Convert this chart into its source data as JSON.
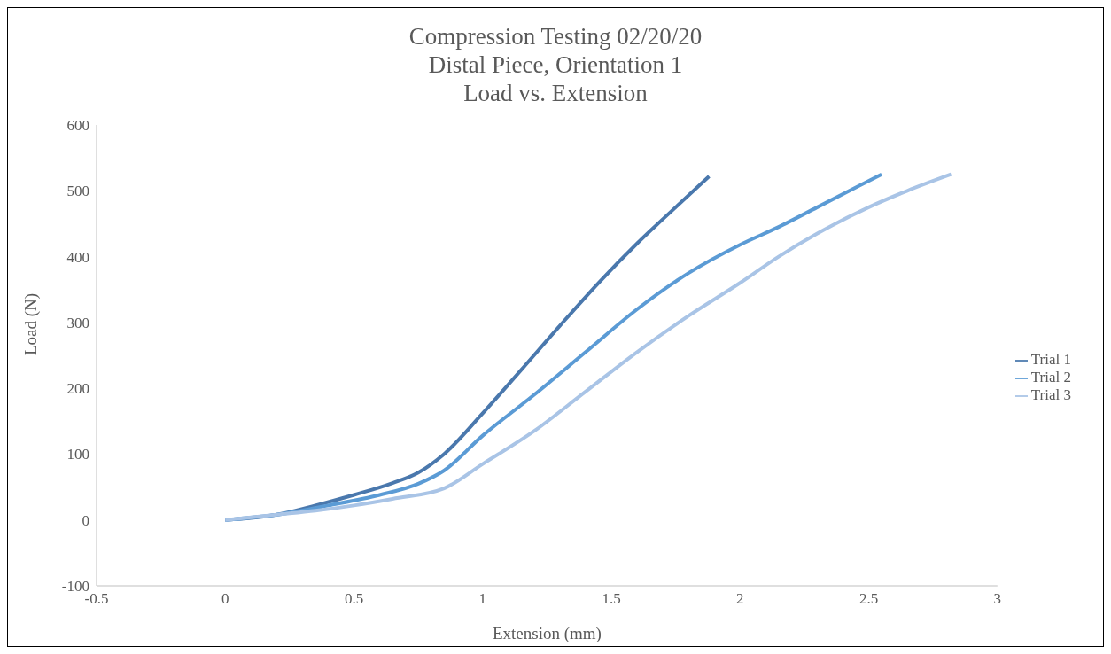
{
  "chart_data": {
    "type": "line",
    "title": "Compression Testing 02/20/20",
    "subtitle": "Distal Piece, Orientation 1\nLoad vs. Extension",
    "xlabel": "Extension (mm)",
    "ylabel": "Load (N)",
    "xlim": [
      -0.5,
      3
    ],
    "xticks": [
      -0.5,
      0,
      0.5,
      1,
      1.5,
      2,
      2.5,
      3
    ],
    "ylim": [
      -100,
      600
    ],
    "yticks": [
      -100,
      0,
      100,
      200,
      300,
      400,
      500,
      600
    ],
    "grid": false,
    "legend": "right",
    "marker": "none",
    "line_style": "solid",
    "series": [
      {
        "name": "Trial 1",
        "color": "#4a78ad",
        "x": [
          0,
          0.2,
          0.35,
          0.5,
          0.65,
          0.75,
          0.85,
          1.0,
          1.15,
          1.3,
          1.45,
          1.6,
          1.75,
          1.88
        ],
        "values": [
          0,
          8,
          22,
          38,
          56,
          72,
          100,
          162,
          228,
          295,
          360,
          420,
          475,
          522
        ]
      },
      {
        "name": "Trial 2",
        "color": "#5b9bd5",
        "x": [
          0,
          0.2,
          0.4,
          0.6,
          0.75,
          0.85,
          1.0,
          1.2,
          1.4,
          1.6,
          1.8,
          2.0,
          2.15,
          2.3,
          2.45,
          2.55
        ],
        "values": [
          0,
          8,
          22,
          38,
          55,
          75,
          128,
          190,
          255,
          320,
          375,
          418,
          445,
          475,
          505,
          525
        ]
      },
      {
        "name": "Trial 3",
        "color": "#a9c4e6",
        "x": [
          0,
          0.2,
          0.35,
          0.5,
          0.65,
          0.85,
          1.0,
          1.2,
          1.4,
          1.6,
          1.8,
          2.0,
          2.15,
          2.3,
          2.5,
          2.65,
          2.82
        ],
        "values": [
          0,
          8,
          14,
          22,
          32,
          48,
          85,
          135,
          195,
          255,
          310,
          360,
          400,
          435,
          475,
          500,
          525
        ]
      }
    ]
  }
}
